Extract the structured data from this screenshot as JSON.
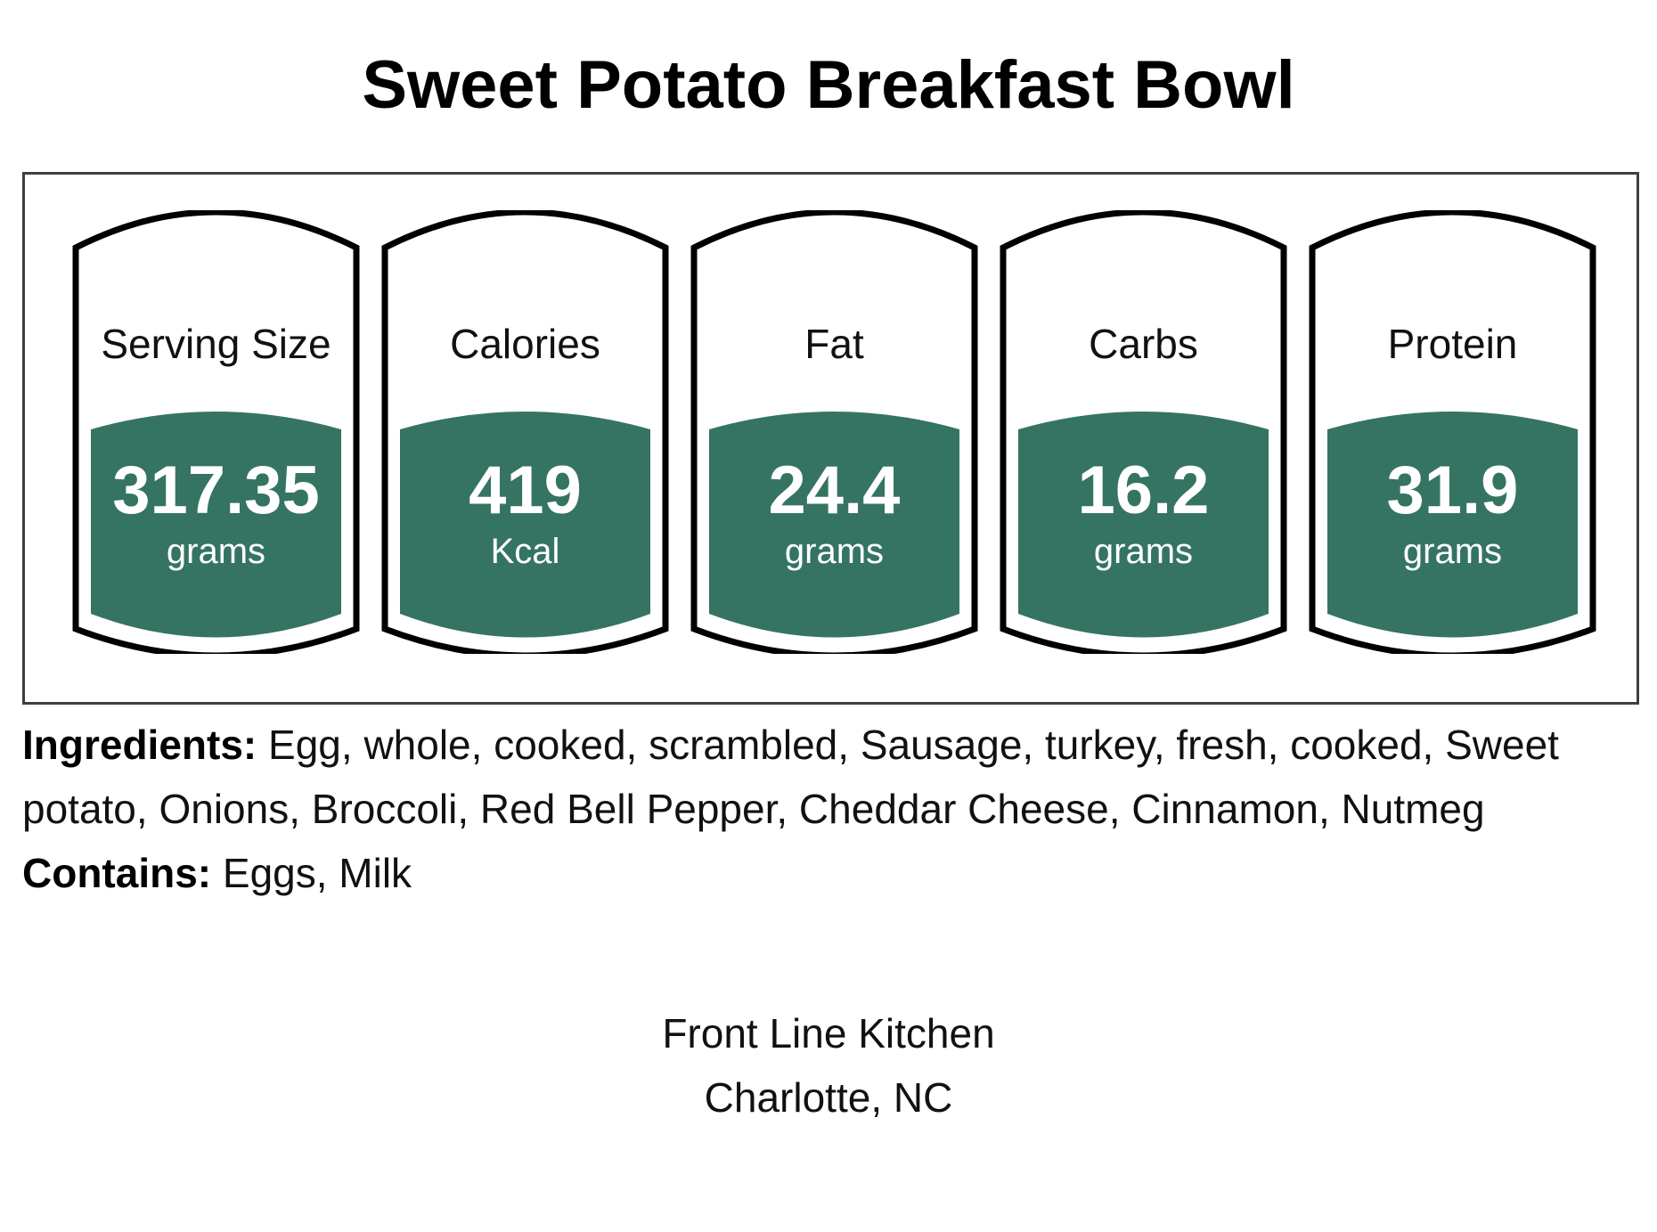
{
  "title": "Sweet Potato Breakfast Bowl",
  "colors": {
    "badge_fill": "#357462",
    "outline": "#000000",
    "panel_border": "#3c3f44"
  },
  "cards": [
    {
      "label": "Serving Size",
      "value": "317.35",
      "unit": "grams"
    },
    {
      "label": "Calories",
      "value": "419",
      "unit": "Kcal"
    },
    {
      "label": "Fat",
      "value": "24.4",
      "unit": "grams"
    },
    {
      "label": "Carbs",
      "value": "16.2",
      "unit": "grams"
    },
    {
      "label": "Protein",
      "value": "31.9",
      "unit": "grams"
    }
  ],
  "ingredients": {
    "heading": "Ingredients:",
    "text": "Egg, whole, cooked, scrambled, Sausage, turkey, fresh, cooked, Sweet potato, Onions, Broccoli, Red Bell Pepper, Cheddar Cheese, Cinnamon, Nutmeg"
  },
  "contains": {
    "heading": "Contains:",
    "text": "Eggs, Milk"
  },
  "footer": {
    "line1": "Front Line Kitchen",
    "line2": "Charlotte, NC"
  }
}
